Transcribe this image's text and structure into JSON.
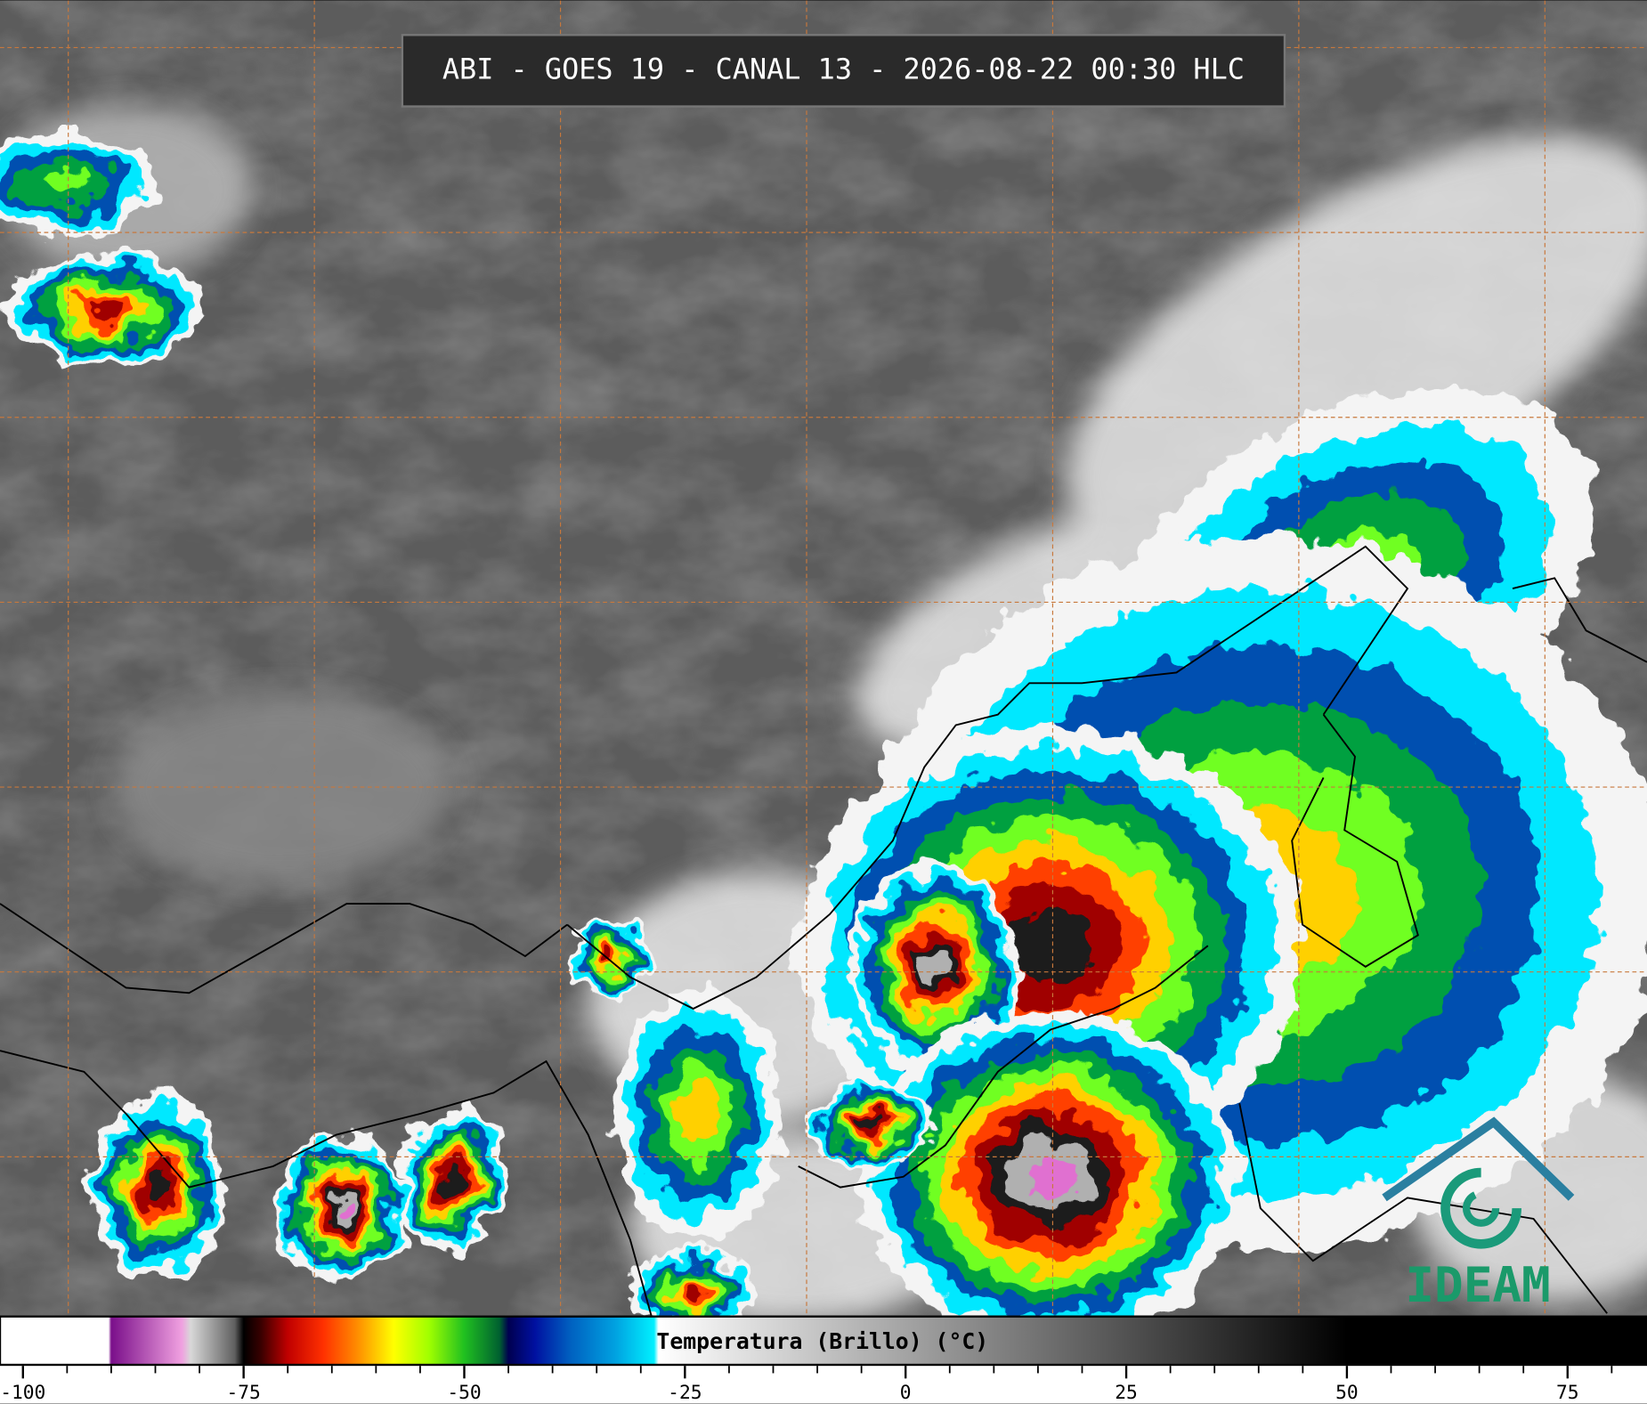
{
  "title": "ABI - GOES 19 - CANAL 13 - 2026-08-22 00:30 HLC",
  "logo": "IDEAM",
  "colorbar": {
    "label": "Temperatura (Brillo) (°C)",
    "xlim": [
      -102.6,
      84
    ],
    "ticks": [
      -100,
      -75,
      -50,
      -25,
      0,
      25,
      50,
      75
    ],
    "minor_ticks": [
      -95,
      -90,
      -85,
      -80,
      -70,
      -65,
      -60,
      -55,
      -45,
      -40,
      -35,
      -30,
      -20,
      -15,
      -10,
      -5,
      5,
      10,
      15,
      20,
      30,
      35,
      40,
      45,
      55,
      60,
      65,
      70,
      80
    ],
    "stops": [
      {
        "value": -102.6,
        "color": "#ffffff"
      },
      {
        "value": -90.3,
        "color": "#ffffff"
      },
      {
        "value": -90,
        "color": "#7a0f8a"
      },
      {
        "value": -82,
        "color": "#f0a0e0"
      },
      {
        "value": -81,
        "color": "#d8d8d8"
      },
      {
        "value": -76,
        "color": "#606060"
      },
      {
        "value": -75,
        "color": "#000000"
      },
      {
        "value": -73,
        "color": "#3a0000"
      },
      {
        "value": -70,
        "color": "#c00000"
      },
      {
        "value": -66,
        "color": "#ff3000"
      },
      {
        "value": -62,
        "color": "#ff9000"
      },
      {
        "value": -58,
        "color": "#ffff00"
      },
      {
        "value": -54,
        "color": "#a0ff00"
      },
      {
        "value": -50,
        "color": "#20c020"
      },
      {
        "value": -46,
        "color": "#006030"
      },
      {
        "value": -45,
        "color": "#000050"
      },
      {
        "value": -42,
        "color": "#0010a0"
      },
      {
        "value": -38,
        "color": "#0060c0"
      },
      {
        "value": -33,
        "color": "#00a0e0"
      },
      {
        "value": -28.5,
        "color": "#00f0ff"
      },
      {
        "value": -28,
        "color": "#ffffff"
      },
      {
        "value": 50,
        "color": "#000000"
      },
      {
        "value": 84,
        "color": "#000000"
      }
    ]
  }
}
